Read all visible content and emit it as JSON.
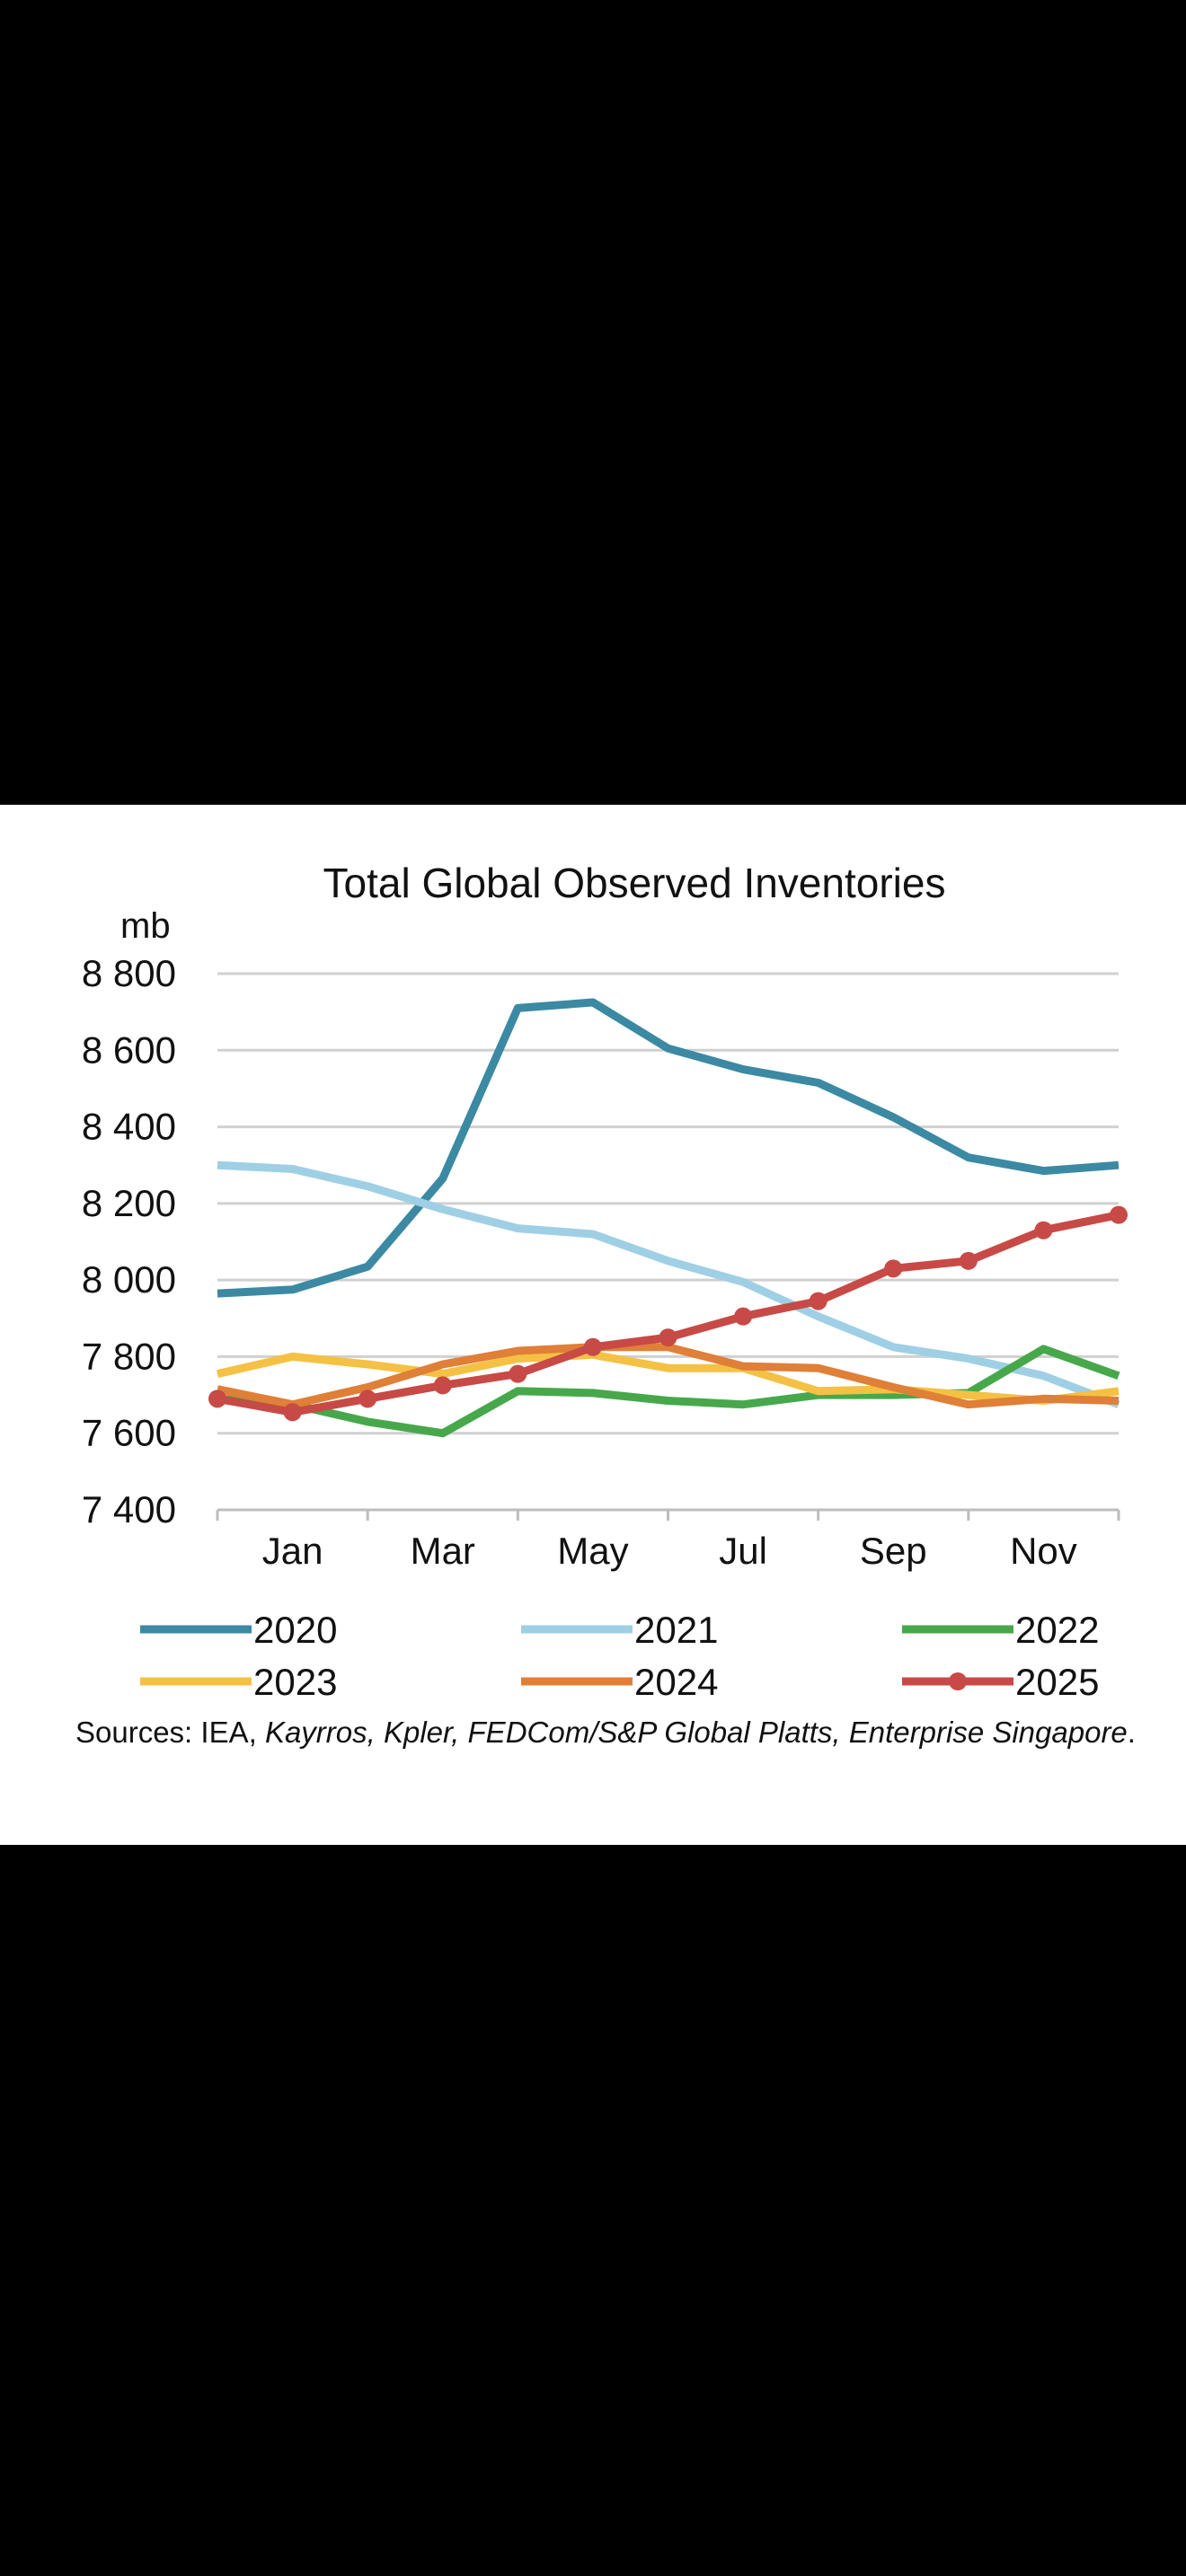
{
  "chart_data": {
    "type": "line",
    "title": "Total Global Observed Inventories",
    "ylabel": "mb",
    "ylim": [
      7400,
      8800
    ],
    "yticks": [
      8800,
      8600,
      8400,
      8200,
      8000,
      7800,
      7600,
      7400
    ],
    "ytick_labels": [
      "8 800",
      "8 600",
      "8 400",
      "8 200",
      "8 000",
      "7 800",
      "7 600",
      "7 400"
    ],
    "xtick_labels": [
      "Jan",
      "Mar",
      "May",
      "Jul",
      "Sep",
      "Nov"
    ],
    "xtick_positions": [
      1,
      3,
      5,
      7,
      9,
      11
    ],
    "x": [
      0,
      1,
      2,
      3,
      4,
      5,
      6,
      7,
      8,
      9,
      10,
      11,
      12
    ],
    "xlim": [
      0,
      12
    ],
    "grid": true,
    "legend_position": "bottom",
    "series": [
      {
        "name": "2020",
        "color": "#3C89A3",
        "markers": false,
        "values": [
          7965,
          7975,
          8035,
          8265,
          8710,
          8725,
          8605,
          8550,
          8515,
          8425,
          8320,
          8285,
          8300
        ]
      },
      {
        "name": "2021",
        "color": "#9FCFE4",
        "markers": false,
        "values": [
          8300,
          8290,
          8245,
          8185,
          8135,
          8120,
          8050,
          7995,
          7905,
          7825,
          7795,
          7750,
          7675
        ]
      },
      {
        "name": "2022",
        "color": "#47A84B",
        "markers": false,
        "values": [
          7690,
          7675,
          7630,
          7600,
          7710,
          7705,
          7685,
          7675,
          7700,
          7700,
          7705,
          7820,
          7750
        ]
      },
      {
        "name": "2023",
        "color": "#F4C144",
        "markers": false,
        "values": [
          7755,
          7800,
          7780,
          7755,
          7795,
          7805,
          7770,
          7770,
          7710,
          7715,
          7700,
          7685,
          7710
        ]
      },
      {
        "name": "2024",
        "color": "#E07F37",
        "markers": false,
        "values": [
          7715,
          7675,
          7720,
          7780,
          7815,
          7825,
          7825,
          7775,
          7770,
          7720,
          7675,
          7690,
          7685
        ]
      },
      {
        "name": "2025",
        "color": "#C74A46",
        "markers": true,
        "values": [
          7690,
          7655,
          7690,
          7725,
          7755,
          7825,
          7850,
          7905,
          7945,
          8030,
          8050,
          8130,
          8170
        ]
      }
    ]
  },
  "sources": {
    "prefix": "Sources: IEA, ",
    "italic": "Kayrros, Kpler, FEDCom/S&P Global Platts, Enterprise Singapore",
    "suffix": "."
  }
}
